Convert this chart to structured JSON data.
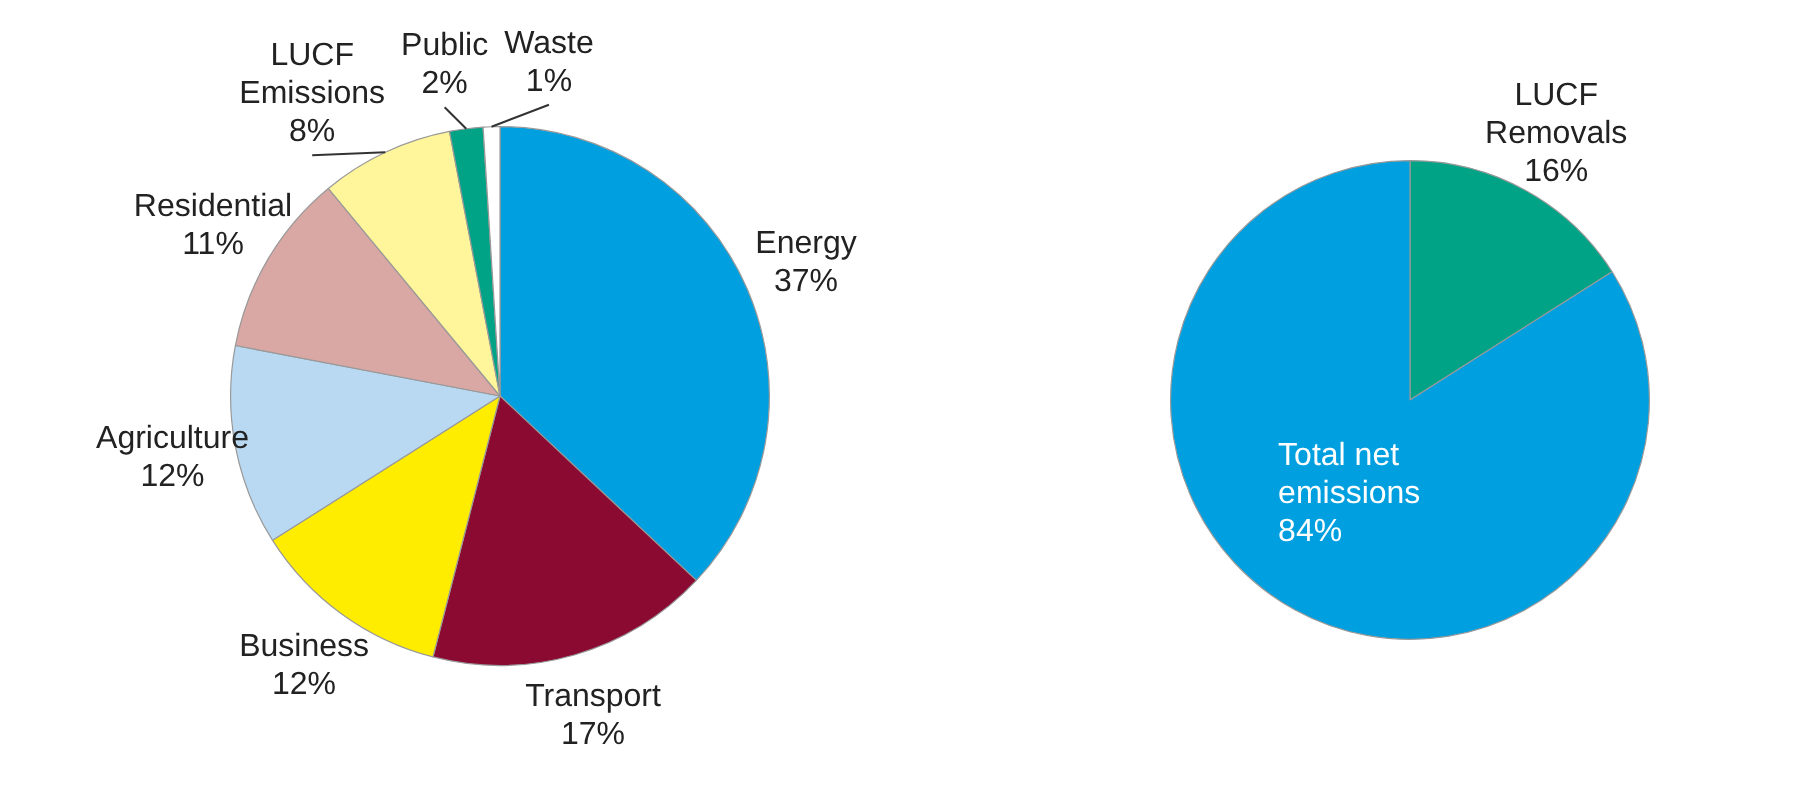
{
  "chart_data": [
    {
      "type": "pie",
      "categories": [
        "Energy",
        "Transport",
        "Business",
        "Agriculture",
        "Residential",
        "LUCF Emissions",
        "Public",
        "Waste"
      ],
      "values": [
        37,
        17,
        12,
        12,
        11,
        8,
        2,
        1
      ],
      "colors": [
        "#009fdf",
        "#8b0a32",
        "#ffed00",
        "#b9d9f2",
        "#d9a8a4",
        "#fff59b",
        "#00a385",
        "#ffffff"
      ],
      "value_labels": [
        "37%",
        "17%",
        "12%",
        "12%",
        "11%",
        "8%",
        "2%",
        "1%"
      ]
    },
    {
      "type": "pie",
      "categories": [
        "LUCF Removals",
        "Total net emissions"
      ],
      "values": [
        16,
        84
      ],
      "colors": [
        "#00a385",
        "#009fdf"
      ],
      "value_labels": [
        "16%",
        "84%"
      ]
    }
  ]
}
